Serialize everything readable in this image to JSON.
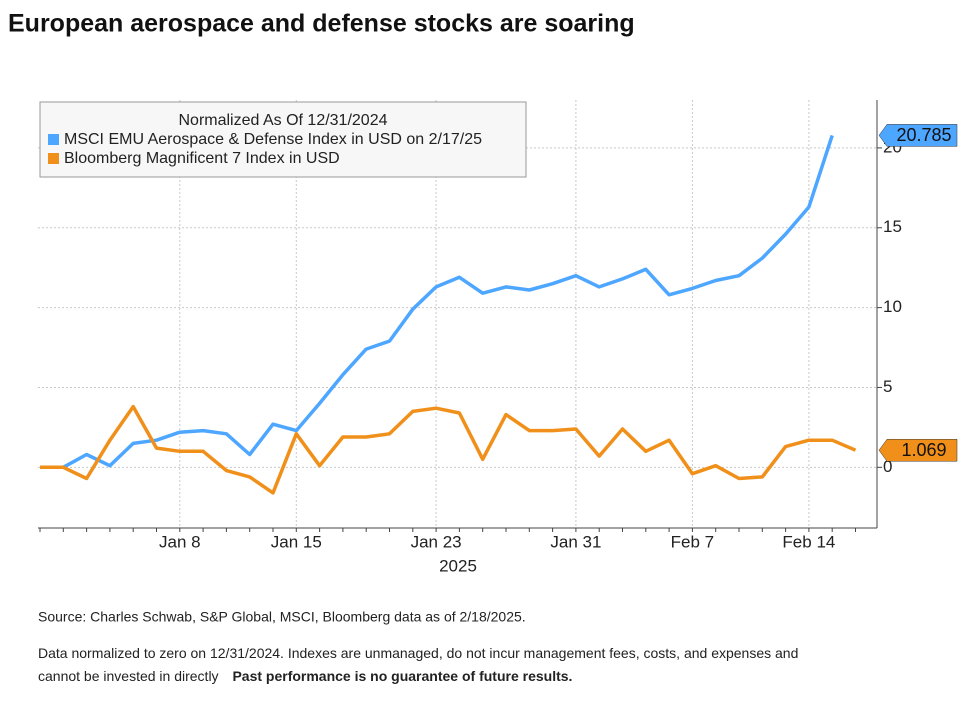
{
  "chart_data": {
    "type": "line",
    "title": "European aerospace and defense stocks are soaring",
    "legend_title": "Normalized As Of 12/31/2024",
    "categories": [
      null,
      null,
      null,
      null,
      null,
      null,
      "Jan 8",
      null,
      null,
      null,
      null,
      "Jan 15",
      null,
      null,
      null,
      null,
      null,
      "Jan 23",
      null,
      null,
      null,
      null,
      null,
      "Jan 31",
      null,
      null,
      null,
      null,
      "Feb 7",
      null,
      null,
      null,
      null,
      "Feb 14",
      null,
      null
    ],
    "x_sublabel": "2025",
    "series": [
      {
        "name": "MSCI EMU Aerospace & Defense Index in USD on 2/17/25",
        "color": "#4da6ff",
        "values": [
          0,
          0,
          0.8,
          0.1,
          1.5,
          1.7,
          2.2,
          2.3,
          2.1,
          0.8,
          2.7,
          2.3,
          4.0,
          5.8,
          7.4,
          7.9,
          9.9,
          11.3,
          11.9,
          10.9,
          11.3,
          11.1,
          11.5,
          12.0,
          11.3,
          11.8,
          12.4,
          10.8,
          11.2,
          11.7,
          12.0,
          13.1,
          14.6,
          16.3,
          20.785,
          null
        ]
      },
      {
        "name": "Bloomberg Magnificent 7 Index in USD",
        "color": "#f0901a",
        "values": [
          0,
          0,
          -0.7,
          1.7,
          3.8,
          1.2,
          1.0,
          1.0,
          -0.2,
          -0.6,
          -1.6,
          2.1,
          0.1,
          1.9,
          1.9,
          2.1,
          3.5,
          3.7,
          3.4,
          0.5,
          3.3,
          2.3,
          2.3,
          2.4,
          0.7,
          2.4,
          1.0,
          1.7,
          -0.4,
          0.1,
          -0.7,
          -0.6,
          1.3,
          1.7,
          1.7,
          1.069
        ]
      }
    ],
    "ylim": [
      -3.8,
      23
    ],
    "yticks": [
      0,
      5,
      10,
      15,
      20
    ],
    "grid": true,
    "source": "Source: Charles Schwab, S&P Global, MSCI, Bloomberg data as of 2/18/2025.",
    "note": "Data normalized to zero on 12/31/2024.  Indexes are unmanaged, do not incur management fees, costs, and expenses and cannot be invested in directly",
    "note_bold": "Past performance is no guarantee of future results."
  }
}
